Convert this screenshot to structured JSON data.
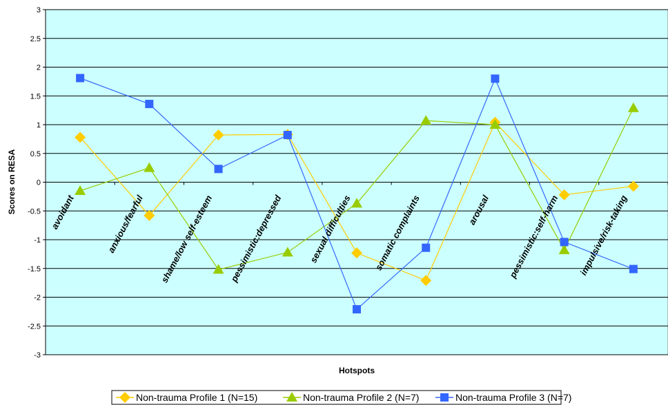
{
  "chart_data": {
    "type": "line",
    "title": "",
    "xlabel": "Hotspots",
    "ylabel": "Scores on RESA",
    "ylim": [
      -3,
      3
    ],
    "ytick_step": 0.5,
    "ytick_labels": [
      "3",
      "2.5",
      "2",
      "1.5",
      "1",
      "0.5",
      "0",
      "-0.5",
      "-1",
      "-1.5",
      "-2",
      "-2.5",
      "-3"
    ],
    "grid": true,
    "plot_background": "#ccffff",
    "legend_position": "bottom",
    "categories": [
      "avoidant",
      "anxious/fearful",
      "shame/low self-esteem",
      "pessimistic:depressed",
      "sexual difficulties",
      "somatic complaints",
      "arousal",
      "pessimistic:self-harm",
      "impulsive/risk-taking"
    ],
    "series": [
      {
        "name": "Non-trauma Profile 1 (N=15)",
        "color": "#ffcc00",
        "marker": "diamond",
        "values": [
          0.78,
          -0.58,
          0.82,
          0.83,
          -1.23,
          -1.71,
          1.04,
          -0.22,
          -0.07
        ]
      },
      {
        "name": "Non-trauma Profile 2 (N=7)",
        "color": "#99cc00",
        "marker": "triangle",
        "values": [
          -0.15,
          0.25,
          -1.52,
          -1.22,
          -0.37,
          1.07,
          1.0,
          -1.18,
          1.29
        ]
      },
      {
        "name": "Non-trauma Profile 3 (N=7)",
        "color": "#3366ff",
        "marker": "square",
        "values": [
          1.81,
          1.36,
          0.23,
          0.82,
          -2.21,
          -1.14,
          1.8,
          -1.04,
          -1.51
        ]
      }
    ]
  }
}
